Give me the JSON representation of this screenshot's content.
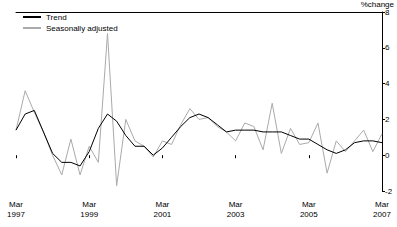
{
  "chart_data": {
    "type": "line",
    "y_label": "%change",
    "categories": [
      "Mar 1997",
      null,
      null,
      null,
      null,
      null,
      null,
      null,
      "Mar 1999",
      null,
      null,
      null,
      null,
      null,
      null,
      null,
      "Mar 2001",
      null,
      null,
      null,
      null,
      null,
      null,
      null,
      "Mar 2003",
      null,
      null,
      null,
      null,
      null,
      null,
      null,
      "Mar 2005",
      null,
      null,
      null,
      null,
      null,
      null,
      null,
      "Mar 2007"
    ],
    "series": [
      {
        "name": "Trend",
        "color": "#000000",
        "values": [
          1.4,
          2.3,
          2.5,
          1.3,
          0.1,
          -0.4,
          -0.4,
          -0.6,
          0.2,
          1.5,
          2.3,
          1.9,
          1.1,
          0.5,
          0.5,
          0.0,
          0.4,
          1.0,
          1.6,
          2.1,
          2.3,
          2.1,
          1.7,
          1.3,
          1.4,
          1.4,
          1.4,
          1.3,
          1.3,
          1.3,
          1.1,
          0.9,
          0.9,
          0.6,
          0.3,
          0.1,
          0.3,
          0.7,
          0.8,
          0.8,
          0.7
        ]
      },
      {
        "name": "Seasonally adjusted",
        "color": "#aaaaaa",
        "values": [
          1.4,
          3.6,
          2.4,
          1.3,
          0.0,
          -1.1,
          0.9,
          -1.1,
          0.5,
          -0.4,
          6.8,
          -1.7,
          2.0,
          0.8,
          0.5,
          -0.1,
          0.8,
          0.6,
          1.7,
          2.6,
          2.0,
          2.1,
          1.6,
          1.3,
          0.8,
          1.8,
          1.6,
          0.3,
          2.9,
          0.1,
          1.5,
          0.6,
          0.7,
          1.8,
          -1.0,
          0.8,
          0.2,
          0.8,
          1.4,
          0.2,
          1.2
        ]
      }
    ],
    "ylim": [
      -2,
      8
    ],
    "yticks": [
      -2,
      0,
      2,
      4,
      6,
      8
    ],
    "grid": false,
    "legend": "top-left"
  }
}
